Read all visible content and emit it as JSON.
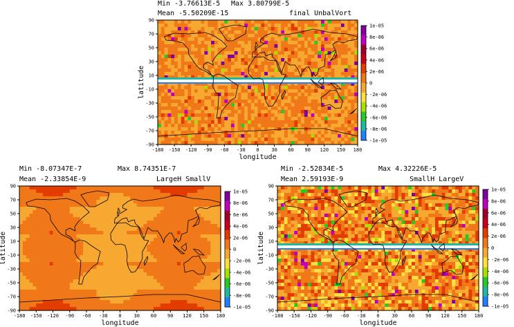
{
  "chart_data": [
    {
      "type": "heatmap",
      "id": "top",
      "stats": {
        "min_label": "Min",
        "min": "-3.76613E-5",
        "max_label": "Max",
        "max": "3.80799E-5",
        "mean_label": "Mean",
        "mean": "-5.50209E-15"
      },
      "title": "final UnbalVort",
      "xlabel": "longitude",
      "ylabel": "latitude",
      "x_ticks": [
        "-180",
        "-150",
        "-120",
        "-90",
        "-60",
        "-30",
        "0",
        "30",
        "60",
        "90",
        "120",
        "150",
        "180"
      ],
      "y_ticks": [
        "90",
        "70",
        "50",
        "30",
        "10",
        "-10",
        "-30",
        "-50",
        "-70",
        "-90"
      ],
      "xlim": [
        -180,
        180
      ],
      "ylim": [
        -90,
        90
      ],
      "colorbar_ticks": [
        "1e-05",
        "8e-06",
        "6e-06",
        "4e-06",
        "2e-06",
        "0",
        "-2e-06",
        "-4e-06",
        "-6e-06",
        "-8e-06",
        "-1e-05"
      ],
      "colorbar_range": [
        -1e-05,
        1e-05
      ],
      "pattern": "noisy",
      "equator_band": true
    },
    {
      "type": "heatmap",
      "id": "bottom-left",
      "stats": {
        "min_label": "Min",
        "min": "-8.07347E-7",
        "max_label": "Max",
        "max": "8.74351E-7",
        "mean_label": "Mean",
        "mean": "-2.33854E-9"
      },
      "title": "LargeH SmallV",
      "xlabel": "longitude",
      "ylabel": "latitude",
      "x_ticks": [
        "-180",
        "-150",
        "-120",
        "-90",
        "-60",
        "-30",
        "0",
        "30",
        "60",
        "90",
        "120",
        "150",
        "180"
      ],
      "y_ticks": [
        "90",
        "70",
        "50",
        "30",
        "10",
        "-10",
        "-30",
        "-50",
        "-70",
        "-90"
      ],
      "xlim": [
        -180,
        180
      ],
      "ylim": [
        -90,
        90
      ],
      "colorbar_ticks": [
        "1e-05",
        "8e-06",
        "6e-06",
        "4e-06",
        "2e-06",
        "0",
        "-2e-06",
        "-4e-06",
        "-6e-06",
        "-8e-06",
        "-1e-05"
      ],
      "colorbar_range": [
        -1e-05,
        1e-05
      ],
      "pattern": "smooth",
      "equator_band": false
    },
    {
      "type": "heatmap",
      "id": "bottom-right",
      "stats": {
        "min_label": "Min",
        "min": "-2.52834E-5",
        "max_label": "Max",
        "max": "4.32226E-5",
        "mean_label": "Mean",
        "mean": "2.59193E-9"
      },
      "title": "SmallH LargeV",
      "xlabel": "longitude",
      "ylabel": "latitude",
      "x_ticks": [
        "-180",
        "-150",
        "-120",
        "-90",
        "-60",
        "-30",
        "0",
        "30",
        "60",
        "90",
        "120",
        "150",
        "180"
      ],
      "y_ticks": [
        "90",
        "70",
        "50",
        "30",
        "10",
        "-10",
        "-30",
        "-50",
        "-70",
        "-90"
      ],
      "xlim": [
        -180,
        180
      ],
      "ylim": [
        -90,
        90
      ],
      "colorbar_ticks": [
        "1e-05",
        "8e-06",
        "6e-06",
        "4e-06",
        "2e-06",
        "0",
        "-2e-06",
        "-4e-06",
        "-6e-06",
        "-8e-06",
        "-1e-05"
      ],
      "colorbar_range": [
        -1e-05,
        1e-05
      ],
      "pattern": "noisy-strong",
      "equator_band": true
    }
  ],
  "colorbar_colors": [
    "#8000a0",
    "#c000c0",
    "#a0002a",
    "#c8001e",
    "#e23c00",
    "#f07818",
    "#f7a830",
    "#ffe040",
    "#a8e000",
    "#28c828",
    "#20b8a0",
    "#2080ff"
  ]
}
